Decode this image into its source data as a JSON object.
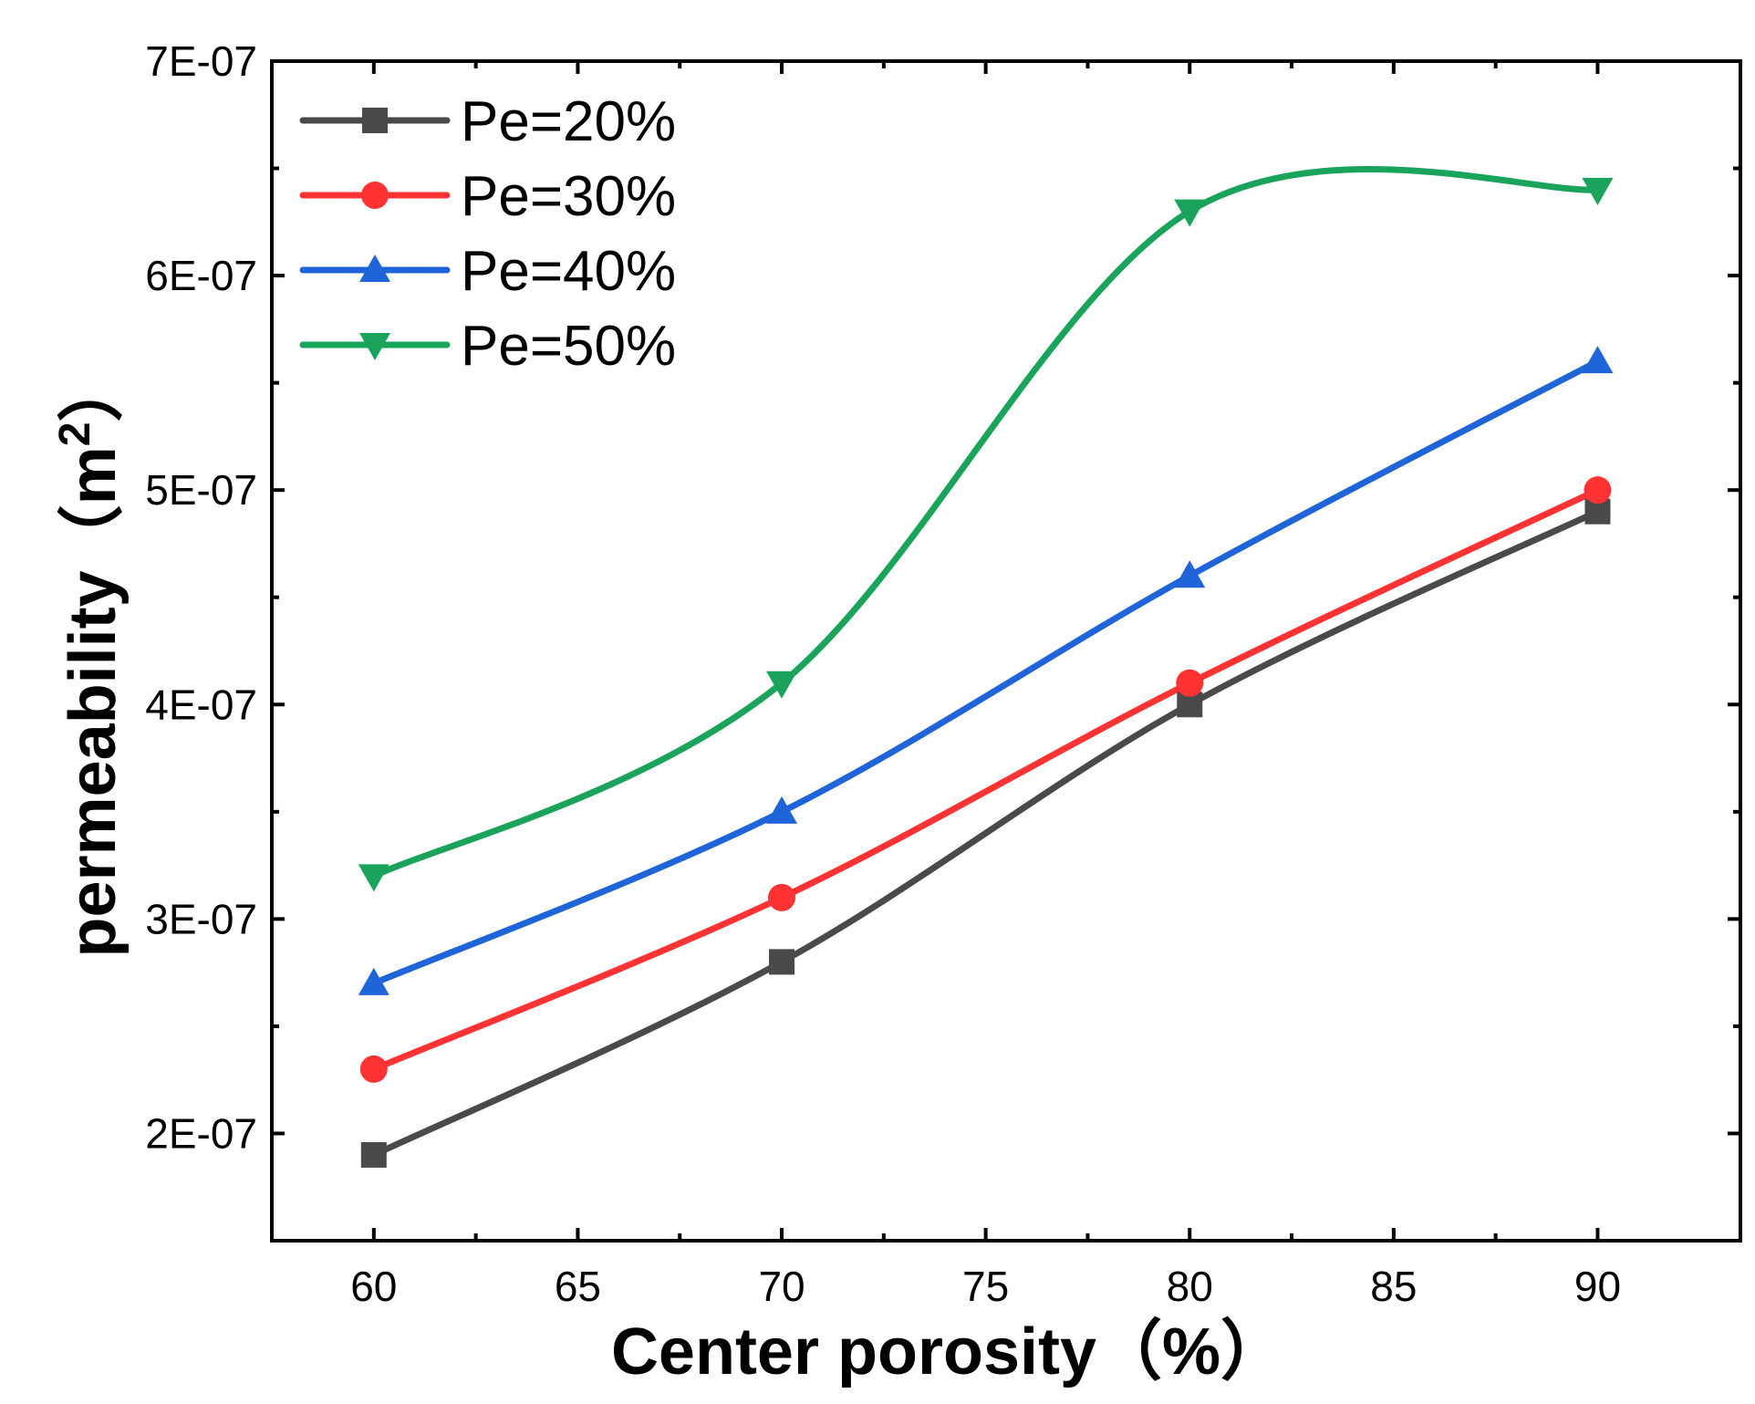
{
  "chart_data": {
    "type": "line",
    "x": [
      60,
      70,
      80,
      90
    ],
    "series": [
      {
        "name": "Pe=20%",
        "values": [
          1.9e-07,
          2.8e-07,
          4e-07,
          4.9e-07
        ],
        "color": "#4a4a4a",
        "marker": "square"
      },
      {
        "name": "Pe=30%",
        "values": [
          2.3e-07,
          3.1e-07,
          4.1e-07,
          5e-07
        ],
        "color": "#ff3333",
        "marker": "circle"
      },
      {
        "name": "Pe=40%",
        "values": [
          2.7e-07,
          3.5e-07,
          4.6e-07,
          5.6e-07
        ],
        "color": "#1f64d9",
        "marker": "triangle-up"
      },
      {
        "name": "Pe=50%",
        "values": [
          3.2e-07,
          4.1e-07,
          6.3e-07,
          6.4e-07
        ],
        "color": "#1aa35a",
        "marker": "triangle-down"
      }
    ],
    "xlabel": "Center porosity（%）",
    "ylabel": "permeability（m",
    "ylabel_superscript": "2",
    "ylabel_close": "）",
    "xlim": [
      57.5,
      93.5
    ],
    "ylim": [
      1.5e-07,
      7e-07
    ],
    "xticks": [
      60,
      65,
      70,
      75,
      80,
      85,
      90
    ],
    "yticks": [
      2e-07,
      3e-07,
      4e-07,
      5e-07,
      6e-07,
      7e-07
    ],
    "ytick_labels": [
      "2E-07",
      "3E-07",
      "4E-07",
      "5E-07",
      "6E-07",
      "7E-07"
    ],
    "legend_position": "top-left",
    "grid": false
  }
}
